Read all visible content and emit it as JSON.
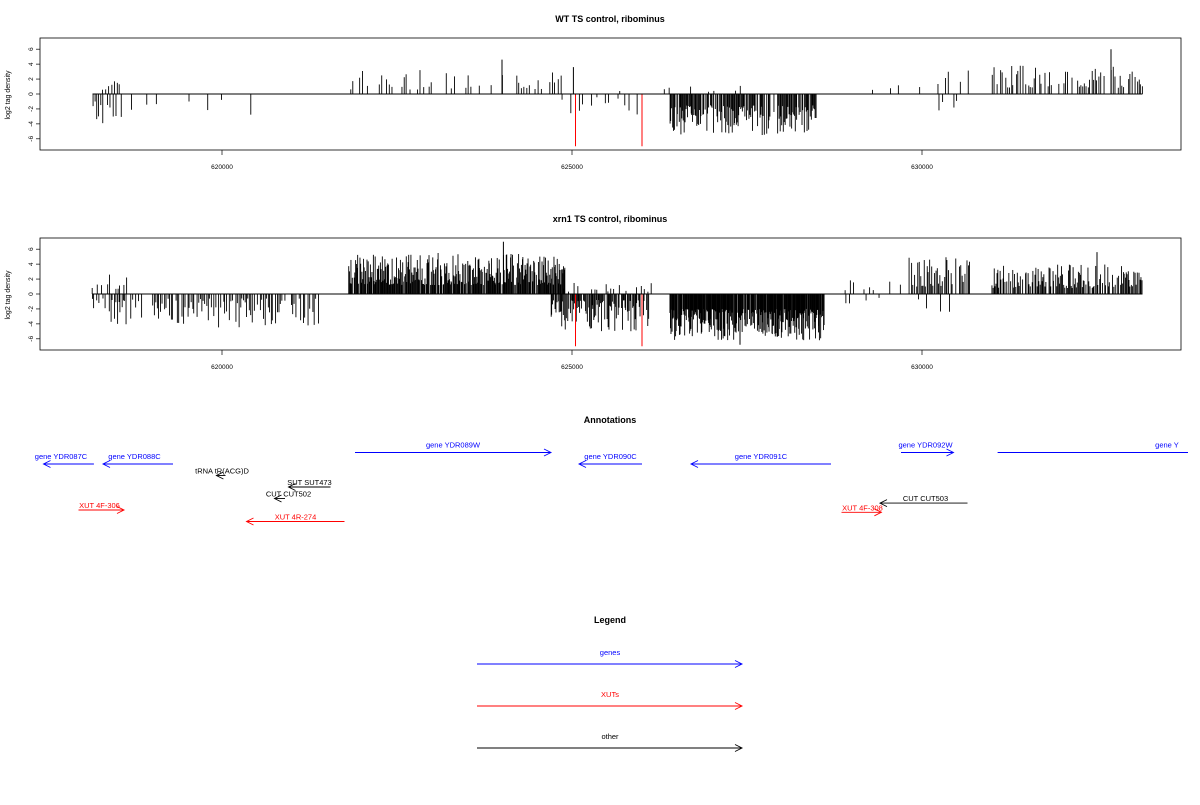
{
  "chart_data": [
    {
      "type": "bar",
      "title": "WT TS control, ribominus",
      "xlabel": "",
      "ylabel": "log2 tag density",
      "xlim": [
        617400,
        633700
      ],
      "ylim": [
        -7.5,
        7.5
      ],
      "x_ticks": [
        620000,
        625000,
        630000
      ],
      "x_tick_labels": [
        "620000",
        "625000",
        "630000"
      ],
      "y_ticks": [
        -6,
        -4,
        -2,
        0,
        2,
        4,
        6
      ],
      "y_tick_labels": [
        "-6",
        "-4",
        "-2",
        "0",
        "2",
        "4",
        "6"
      ],
      "baseline": {
        "x": [
          618150,
          633150
        ],
        "y": 0
      },
      "segments": [
        {
          "sign": -1,
          "start": 618150,
          "end": 618280,
          "step": 30,
          "min": 0.8,
          "max": 4.5,
          "seed": 1
        },
        {
          "sign": 1,
          "start": 618300,
          "end": 618550,
          "step": 40,
          "min": 0.5,
          "max": 1.7,
          "seed": 2
        },
        {
          "sign": -1,
          "start": 618300,
          "end": 618550,
          "step": 50,
          "min": 1.0,
          "max": 4.2,
          "seed": 3
        },
        {
          "sign": -1,
          "start": 618700,
          "end": 620500,
          "step": 120,
          "min": 0.5,
          "max": 3.0,
          "seed": 4,
          "density": 0.45
        },
        {
          "sign": 1,
          "start": 620500,
          "end": 620700,
          "step": 150,
          "min": 0.3,
          "max": 0.8,
          "seed": 5,
          "density": 0.4
        },
        {
          "sign": 1,
          "start": 621800,
          "end": 624900,
          "step": 40,
          "min": 0.6,
          "max": 3.2,
          "seed": 6,
          "density": 0.55
        },
        {
          "sign": -1,
          "start": 624800,
          "end": 626000,
          "step": 60,
          "min": 0.4,
          "max": 3.0,
          "seed": 7,
          "density": 0.35
        },
        {
          "sign": 1,
          "start": 624600,
          "end": 625800,
          "step": 100,
          "min": 0.3,
          "max": 1.4,
          "seed": 8,
          "density": 0.3
        },
        {
          "sign": -1,
          "start": 626400,
          "end": 628500,
          "step": 12,
          "min": 1.5,
          "max": 5.5,
          "seed": 9,
          "density": 0.85
        },
        {
          "sign": 1,
          "start": 626300,
          "end": 628200,
          "step": 80,
          "min": 0.3,
          "max": 1.2,
          "seed": 10,
          "density": 0.3
        },
        {
          "sign": 1,
          "start": 629200,
          "end": 630000,
          "step": 110,
          "min": 0.5,
          "max": 1.8,
          "seed": 11,
          "density": 0.5
        },
        {
          "sign": 1,
          "start": 630200,
          "end": 630700,
          "step": 35,
          "min": 0.8,
          "max": 3.5,
          "seed": 12,
          "density": 0.6
        },
        {
          "sign": -1,
          "start": 630100,
          "end": 630600,
          "step": 50,
          "min": 0.5,
          "max": 2.5,
          "seed": 13,
          "density": 0.5
        },
        {
          "sign": 1,
          "start": 631000,
          "end": 633150,
          "step": 25,
          "min": 0.8,
          "max": 3.8,
          "seed": 14,
          "density": 0.7
        }
      ],
      "peaks": [
        {
          "x": 624000,
          "y": 4.6,
          "color": "#000000"
        },
        {
          "x": 625020,
          "y": 3.6,
          "color": "#000000"
        },
        {
          "x": 632700,
          "y": 6.0,
          "color": "#000000"
        },
        {
          "x": 625050,
          "y": -7.0,
          "color": "#ff0000"
        },
        {
          "x": 626000,
          "y": -7.0,
          "color": "#ff0000"
        }
      ]
    },
    {
      "type": "bar",
      "title": "xrn1 TS control, ribominus",
      "xlabel": "",
      "ylabel": "log2 tag density",
      "xlim": [
        617400,
        633700
      ],
      "ylim": [
        -7.5,
        7.5
      ],
      "x_ticks": [
        620000,
        625000,
        630000
      ],
      "x_tick_labels": [
        "620000",
        "625000",
        "630000"
      ],
      "y_ticks": [
        -6,
        -4,
        -2,
        0,
        2,
        4,
        6
      ],
      "y_tick_labels": [
        "-6",
        "-4",
        "-2",
        "0",
        "2",
        "4",
        "6"
      ],
      "baseline": {
        "x": [
          618150,
          633150
        ],
        "y": 0
      },
      "segments": [
        {
          "sign": 1,
          "start": 618150,
          "end": 618700,
          "step": 30,
          "min": 0.5,
          "max": 2.6,
          "seed": 21,
          "density": 0.6
        },
        {
          "sign": -1,
          "start": 618150,
          "end": 621400,
          "step": 22,
          "min": 0.6,
          "max": 4.5,
          "seed": 22,
          "density": 0.75
        },
        {
          "sign": 1,
          "start": 621800,
          "end": 624900,
          "step": 10,
          "min": 1.2,
          "max": 5.5,
          "seed": 23,
          "density": 0.9
        },
        {
          "sign": -1,
          "start": 624700,
          "end": 626100,
          "step": 12,
          "min": 0.8,
          "max": 5.0,
          "seed": 24,
          "density": 0.8
        },
        {
          "sign": 1,
          "start": 624800,
          "end": 626200,
          "step": 40,
          "min": 0.3,
          "max": 1.5,
          "seed": 25,
          "density": 0.4
        },
        {
          "sign": -1,
          "start": 626400,
          "end": 628600,
          "step": 8,
          "min": 2.0,
          "max": 6.2,
          "seed": 26,
          "density": 0.95
        },
        {
          "sign": 1,
          "start": 628900,
          "end": 629800,
          "step": 70,
          "min": 0.5,
          "max": 2.4,
          "seed": 27,
          "density": 0.5
        },
        {
          "sign": -1,
          "start": 628900,
          "end": 629400,
          "step": 80,
          "min": 0.4,
          "max": 1.5,
          "seed": 28,
          "density": 0.4
        },
        {
          "sign": 1,
          "start": 629800,
          "end": 630700,
          "step": 18,
          "min": 1.0,
          "max": 5.0,
          "seed": 29,
          "density": 0.8
        },
        {
          "sign": -1,
          "start": 629900,
          "end": 630400,
          "step": 60,
          "min": 0.5,
          "max": 2.8,
          "seed": 30,
          "density": 0.5
        },
        {
          "sign": 1,
          "start": 631000,
          "end": 633150,
          "step": 14,
          "min": 0.8,
          "max": 4.0,
          "seed": 31,
          "density": 0.8
        }
      ],
      "peaks": [
        {
          "x": 624020,
          "y": 7.0,
          "color": "#000000"
        },
        {
          "x": 632500,
          "y": 5.6,
          "color": "#000000"
        },
        {
          "x": 627400,
          "y": -6.8,
          "color": "#000000"
        },
        {
          "x": 625050,
          "y": -7.0,
          "color": "#ff0000"
        },
        {
          "x": 626000,
          "y": -7.0,
          "color": "#ff0000"
        }
      ]
    }
  ],
  "annotations": {
    "title": "Annotations",
    "features": [
      {
        "label": "gene YDR087C",
        "x1": 618170,
        "x2": 617450,
        "y": 0,
        "color": "#0000ff",
        "label_x": 617700,
        "label_dy": -5
      },
      {
        "label": "gene YDR088C",
        "x1": 619300,
        "x2": 618300,
        "y": 0,
        "color": "#0000ff",
        "label_x": 618750,
        "label_dy": -5
      },
      {
        "label": "gene YDR089W",
        "x1": 621900,
        "x2": 624700,
        "y": -1,
        "color": "#0000ff",
        "label_x": 623300,
        "label_dy": -5
      },
      {
        "label": "gene YDR090C",
        "x1": 626000,
        "x2": 625100,
        "y": 0,
        "color": "#0000ff",
        "label_x": 625550,
        "label_dy": -5
      },
      {
        "label": "gene YDR091C",
        "x1": 628700,
        "x2": 626700,
        "y": 0,
        "color": "#0000ff",
        "label_x": 627700,
        "label_dy": -5
      },
      {
        "label": "gene YDR092W",
        "x1": 629700,
        "x2": 630450,
        "y": -1,
        "color": "#0000ff",
        "label_x": 630050,
        "label_dy": -5
      },
      {
        "label": "gene Y",
        "x1": 631080,
        "x2": 633800,
        "y": -1,
        "color": "#0000ff",
        "label_x": 633500,
        "label_dy": -5,
        "no_head": true
      },
      {
        "label": "tRNA tR(ACG)D",
        "x1": 620050,
        "x2": 619920,
        "y": 1,
        "color": "#000000",
        "label_x": 620000,
        "label_dy": -2
      },
      {
        "label": "SUT SUT473",
        "x1": 621550,
        "x2": 620950,
        "y": 2,
        "color": "#000000",
        "label_x": 621250,
        "label_dy": -2
      },
      {
        "label": "CUT CUT502",
        "x1": 620900,
        "x2": 620750,
        "y": 3,
        "color": "#000000",
        "label_x": 620950,
        "label_dy": -2
      },
      {
        "label": "XUT 4F-306",
        "x1": 617950,
        "x2": 618600,
        "y": 4,
        "color": "#ff0000",
        "label_x": 618250,
        "label_dy": -2
      },
      {
        "label": "XUT 4R-274",
        "x1": 621750,
        "x2": 620350,
        "y": 5,
        "color": "#ff0000",
        "label_x": 621050,
        "label_dy": -2
      },
      {
        "label": "CUT CUT503",
        "x1": 630650,
        "x2": 629400,
        "y": 3.4,
        "color": "#000000",
        "label_x": 630050,
        "label_dy": -2
      },
      {
        "label": "XUT 4F-308",
        "x1": 628850,
        "x2": 629420,
        "y": 4.2,
        "color": "#ff0000",
        "label_x": 629150,
        "label_dy": -2
      }
    ]
  },
  "legend": {
    "title": "Legend",
    "items": [
      {
        "label": "genes",
        "color": "#0000ff"
      },
      {
        "label": "XUTs",
        "color": "#ff0000"
      },
      {
        "label": "other",
        "color": "#000000"
      }
    ]
  }
}
